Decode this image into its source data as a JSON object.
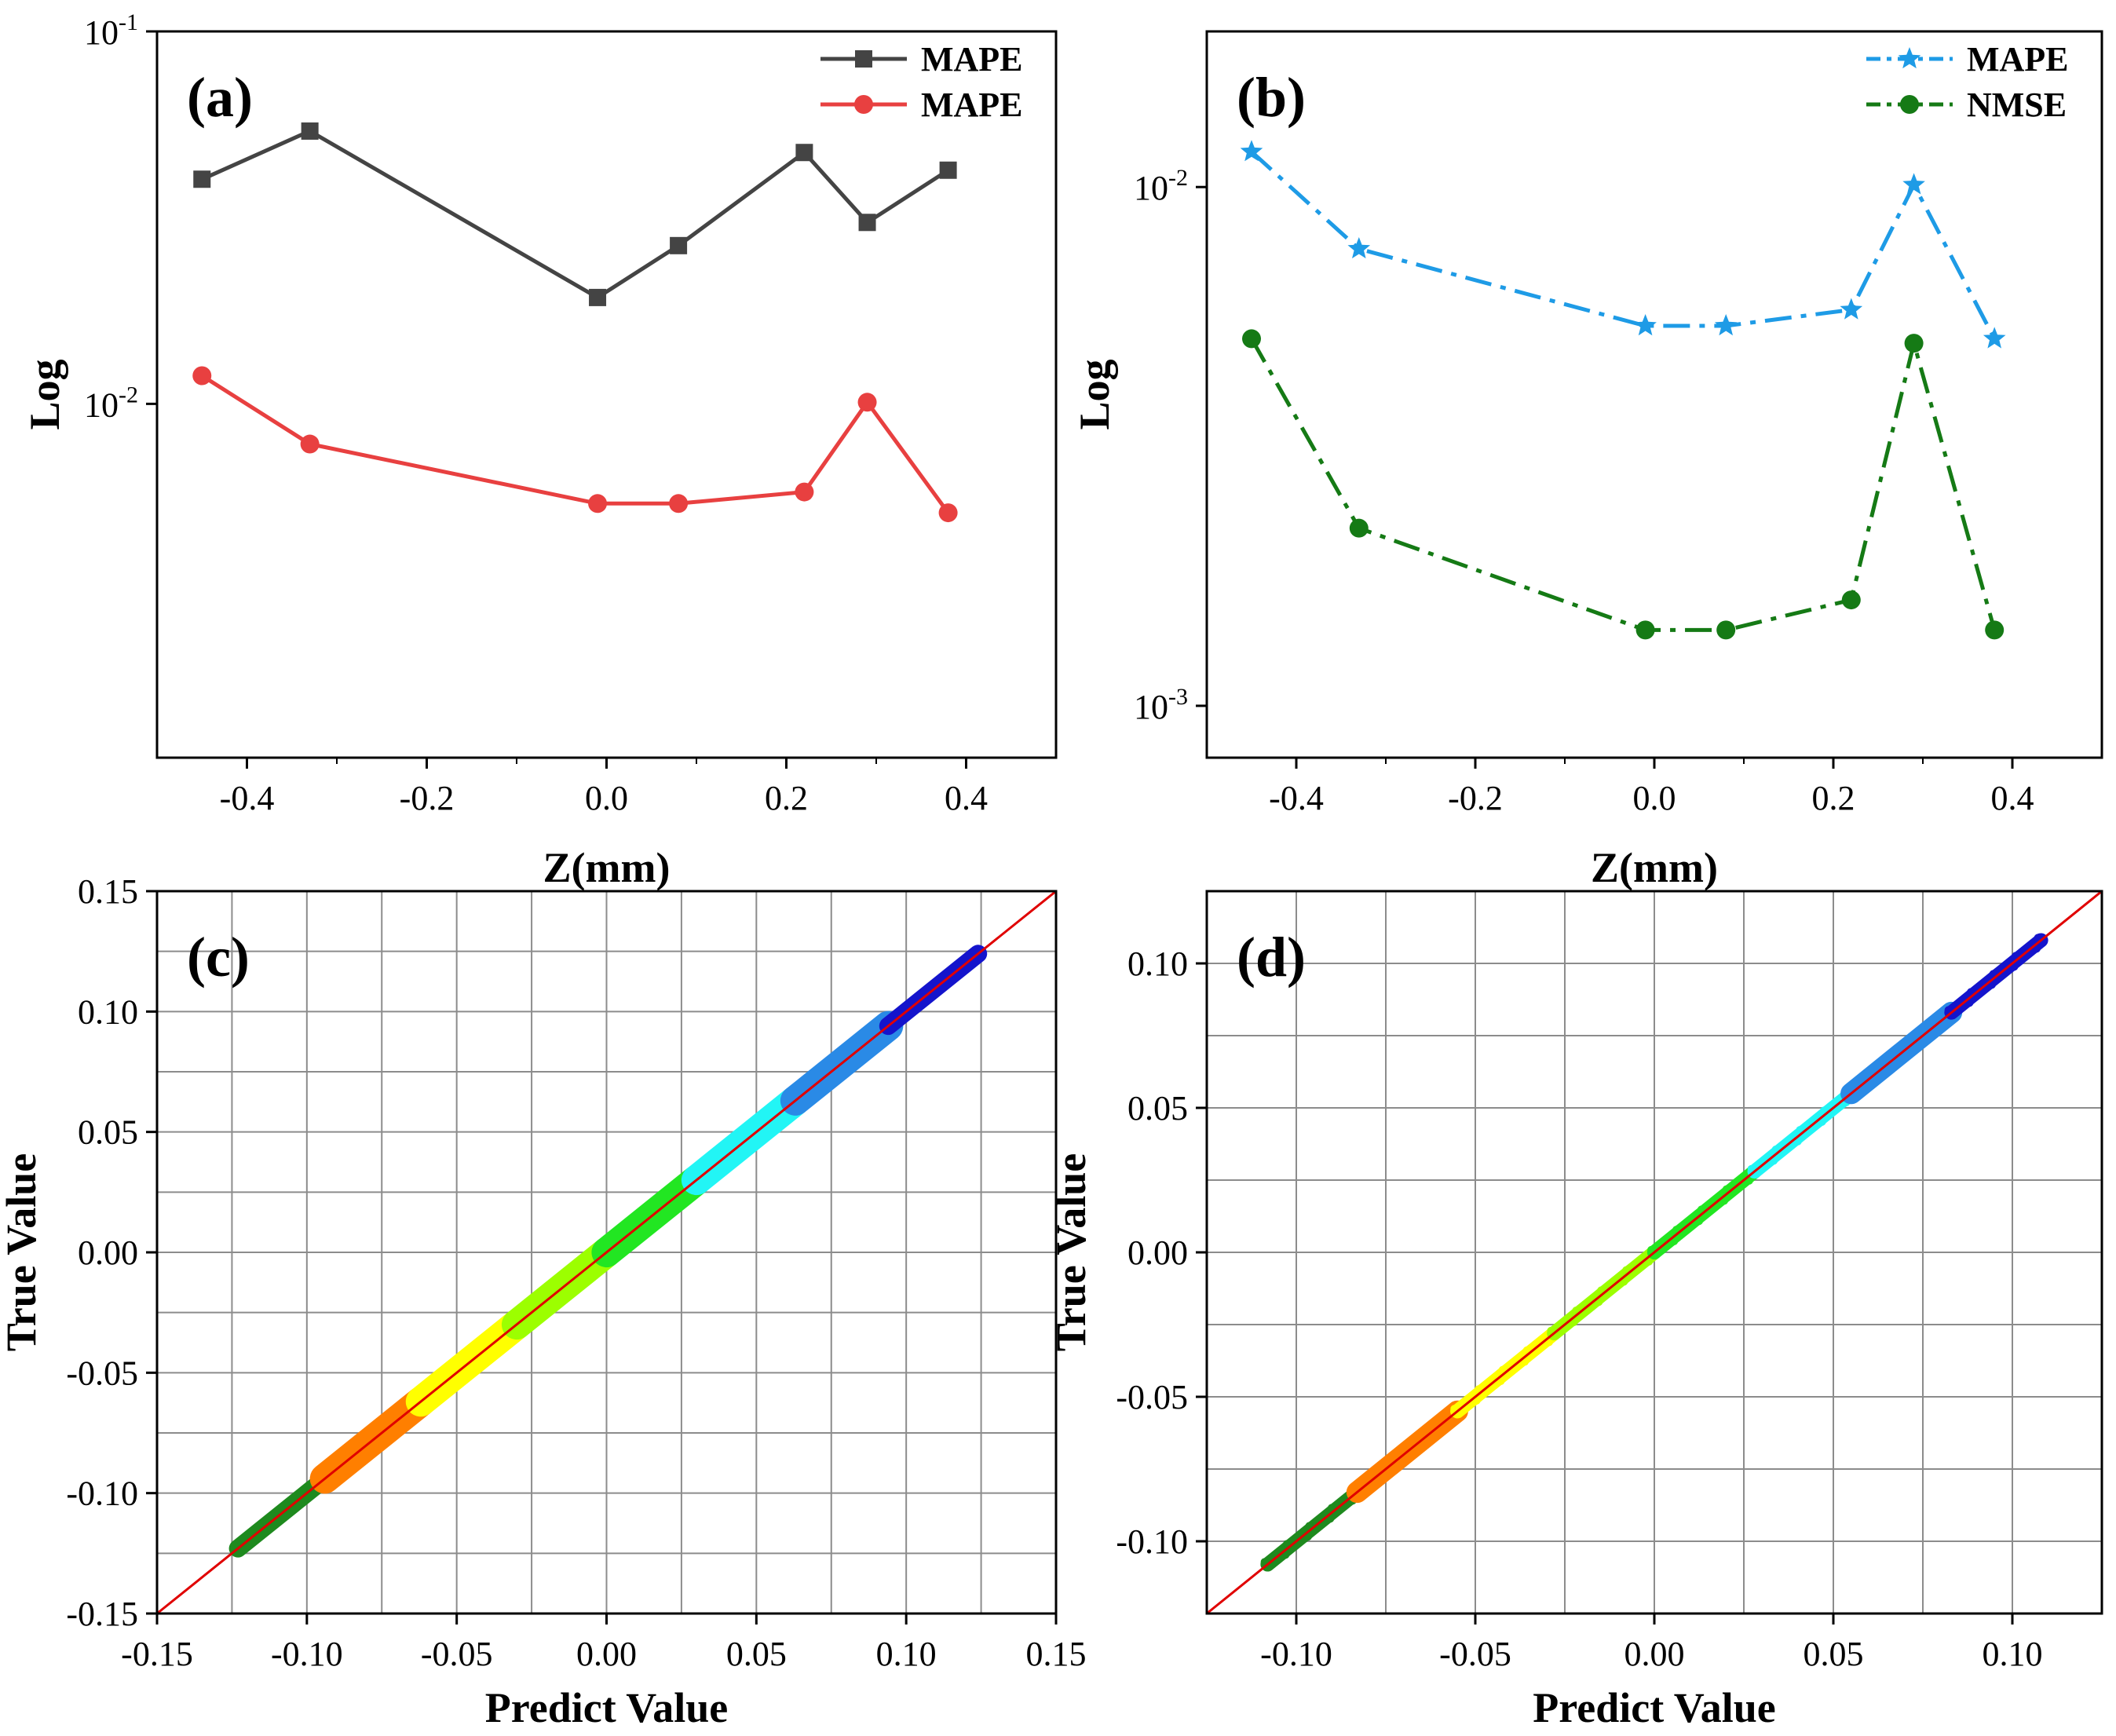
{
  "chart_data": [
    {
      "id": "a",
      "type": "line",
      "panel_label": "(a)",
      "xlabel": "Z(mm)",
      "ylabel": "Log",
      "yscale": "log",
      "xlim": [
        -0.5,
        0.5
      ],
      "ylim_log10": [
        -2.95,
        -1.0
      ],
      "x_ticks": [
        -0.4,
        -0.2,
        0.0,
        0.2,
        0.4
      ],
      "x_tick_labels": [
        "-0.4",
        "-0.2",
        "0.0",
        "0.2",
        "0.4"
      ],
      "y_ticks_log10": [
        -2,
        -1
      ],
      "y_tick_bases": [
        "10",
        "10"
      ],
      "y_tick_exps": [
        "-2",
        "-1"
      ],
      "legend_position": "top-right",
      "series": [
        {
          "name": "MAPE",
          "color": "#444444",
          "marker": "square",
          "dash": "solid",
          "x": [
            -0.45,
            -0.33,
            -0.01,
            0.08,
            0.22,
            0.29,
            0.38
          ],
          "y": [
            0.0401,
            0.054,
            0.0193,
            0.0266,
            0.0473,
            0.0307,
            0.0424
          ]
        },
        {
          "name": "MAPE",
          "color": "#e84040",
          "marker": "circle",
          "dash": "solid",
          "x": [
            -0.45,
            -0.33,
            -0.01,
            0.08,
            0.22,
            0.29,
            0.38
          ],
          "y": [
            0.0119,
            0.0078,
            0.0054,
            0.0054,
            0.0058,
            0.0101,
            0.0051
          ]
        }
      ]
    },
    {
      "id": "b",
      "type": "line",
      "panel_label": "(b)",
      "xlabel": "Z(mm)",
      "ylabel": "Log",
      "yscale": "log",
      "xlim": [
        -0.5,
        0.5
      ],
      "ylim_log10": [
        -3.1,
        -1.7
      ],
      "x_ticks": [
        -0.4,
        -0.2,
        0.0,
        0.2,
        0.4
      ],
      "x_tick_labels": [
        "-0.4",
        "-0.2",
        "0.0",
        "0.2",
        "0.4"
      ],
      "y_ticks_log10": [
        -3,
        -2
      ],
      "y_tick_bases": [
        "10",
        "10"
      ],
      "y_tick_exps": [
        "-3",
        "-2"
      ],
      "legend_position": "top-right",
      "series": [
        {
          "name": "MAPE",
          "color": "#1e9be6",
          "marker": "star",
          "dash": "dashdot",
          "x": [
            -0.45,
            -0.33,
            -0.01,
            0.08,
            0.22,
            0.29,
            0.38
          ],
          "y": [
            0.0117,
            0.0076,
            0.0054,
            0.0054,
            0.0058,
            0.0101,
            0.0051
          ]
        },
        {
          "name": "NMSE",
          "color": "#157a15",
          "marker": "circle",
          "dash": "dashdot",
          "x": [
            -0.45,
            -0.33,
            -0.01,
            0.08,
            0.22,
            0.29,
            0.38
          ],
          "y": [
            0.0051,
            0.0022,
            0.0014,
            0.0014,
            0.0016,
            0.005,
            0.0014
          ]
        }
      ]
    },
    {
      "id": "c",
      "type": "scatter",
      "panel_label": "(c)",
      "xlabel": "Predict Value",
      "ylabel": "True Value",
      "xlim": [
        -0.15,
        0.15
      ],
      "ylim": [
        -0.15,
        0.15
      ],
      "x_ticks": [
        -0.15,
        -0.1,
        -0.05,
        0.0,
        0.05,
        0.1,
        0.15
      ],
      "x_tick_labels": [
        "-0.15",
        "-0.10",
        "-0.05",
        "0.00",
        "0.05",
        "0.10",
        "0.15"
      ],
      "y_ticks": [
        -0.15,
        -0.1,
        -0.05,
        0.0,
        0.05,
        0.1,
        0.15
      ],
      "y_tick_labels": [
        "-0.15",
        "-0.10",
        "-0.05",
        "0.00",
        "0.05",
        "0.10",
        "0.15"
      ],
      "grid_x": [
        -0.125,
        -0.1,
        -0.075,
        -0.05,
        -0.025,
        0.0,
        0.025,
        0.05,
        0.075,
        0.1,
        0.125
      ],
      "grid_y": [
        -0.125,
        -0.1,
        -0.075,
        -0.05,
        -0.025,
        0.0,
        0.025,
        0.05,
        0.075,
        0.1,
        0.125
      ],
      "grid": true,
      "reference_line": {
        "from": [
          -0.15,
          -0.15
        ],
        "to": [
          0.15,
          0.15
        ],
        "color": "#e00000"
      },
      "segments": [
        {
          "from": -0.123,
          "to": -0.094,
          "color": "#1e8a1e",
          "spread": 0.003
        },
        {
          "from": -0.094,
          "to": -0.062,
          "color": "#ff7f00",
          "spread": 0.005
        },
        {
          "from": -0.062,
          "to": -0.03,
          "color": "#ffff00",
          "spread": 0.005
        },
        {
          "from": -0.03,
          "to": 0.0,
          "color": "#9cff00",
          "spread": 0.005
        },
        {
          "from": 0.0,
          "to": 0.03,
          "color": "#22e622",
          "spread": 0.005
        },
        {
          "from": 0.03,
          "to": 0.063,
          "color": "#22f5f5",
          "spread": 0.005
        },
        {
          "from": 0.063,
          "to": 0.094,
          "color": "#2a8ae6",
          "spread": 0.005
        },
        {
          "from": 0.094,
          "to": 0.124,
          "color": "#1414cc",
          "spread": 0.003
        }
      ]
    },
    {
      "id": "d",
      "type": "scatter",
      "panel_label": "(d)",
      "xlabel": "Predict Value",
      "ylabel": "True Value",
      "xlim": [
        -0.125,
        0.125
      ],
      "ylim": [
        -0.125,
        0.125
      ],
      "x_ticks": [
        -0.1,
        -0.05,
        0.0,
        0.05,
        0.1
      ],
      "x_tick_labels": [
        "-0.10",
        "-0.05",
        "0.00",
        "0.05",
        "0.10"
      ],
      "y_ticks": [
        -0.1,
        -0.05,
        0.0,
        0.05,
        0.1
      ],
      "y_tick_labels": [
        "-0.10",
        "-0.05",
        "0.00",
        "0.05",
        "0.10"
      ],
      "grid_x": [
        -0.1,
        -0.075,
        -0.05,
        -0.025,
        0.0,
        0.025,
        0.05,
        0.075,
        0.1
      ],
      "grid_y": [
        -0.1,
        -0.075,
        -0.05,
        -0.025,
        0.0,
        0.025,
        0.05,
        0.075,
        0.1
      ],
      "grid": true,
      "reference_line": {
        "from": [
          -0.125,
          -0.125
        ],
        "to": [
          0.125,
          0.125
        ],
        "color": "#e00000"
      },
      "segments": [
        {
          "from": -0.108,
          "to": -0.083,
          "color": "#1e8a1e",
          "spread": 0.002
        },
        {
          "from": -0.083,
          "to": -0.055,
          "color": "#ff7f00",
          "spread": 0.003
        },
        {
          "from": -0.055,
          "to": -0.028,
          "color": "#ffff00",
          "spread": 0.002
        },
        {
          "from": -0.028,
          "to": 0.0,
          "color": "#9cff00",
          "spread": 0.002
        },
        {
          "from": 0.0,
          "to": 0.028,
          "color": "#22e622",
          "spread": 0.002
        },
        {
          "from": 0.028,
          "to": 0.055,
          "color": "#22f5f5",
          "spread": 0.002
        },
        {
          "from": 0.055,
          "to": 0.083,
          "color": "#2a8ae6",
          "spread": 0.003
        },
        {
          "from": 0.083,
          "to": 0.108,
          "color": "#1414cc",
          "spread": 0.002
        }
      ]
    }
  ]
}
